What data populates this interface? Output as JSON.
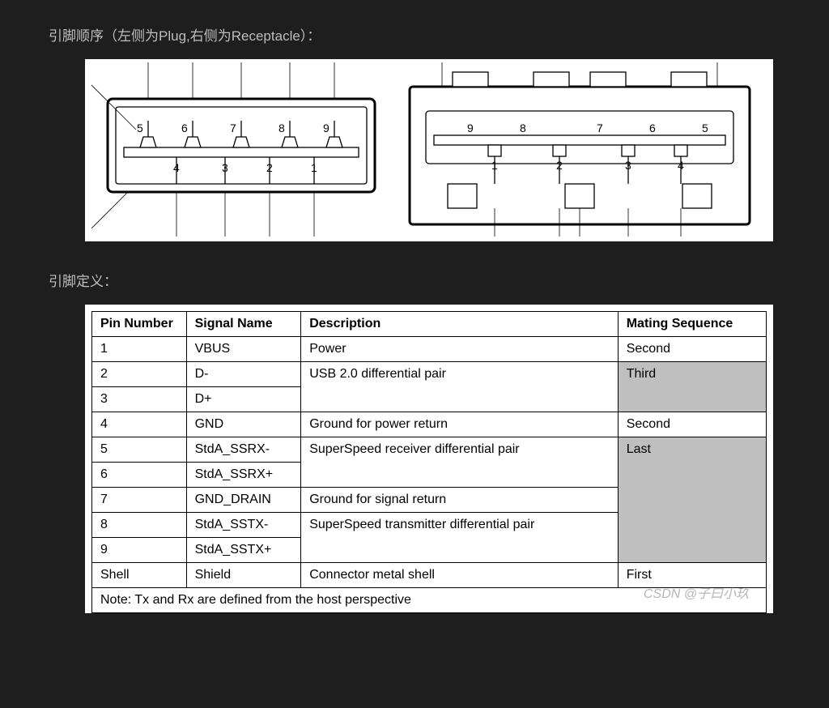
{
  "headings": {
    "pin_order": "引脚顺序（左侧为Plug,右侧为Receptacle）：",
    "pin_def": "引脚定义："
  },
  "diagrams": {
    "plug": {
      "type": "schematic",
      "stroke": "#000000",
      "stroke_width": 1.3,
      "fill": "#ffffff",
      "top_pins": [
        "5",
        "6",
        "7",
        "8",
        "9"
      ],
      "bottom_pins": [
        "4",
        "3",
        "2",
        "1"
      ],
      "label_fontsize": 14
    },
    "receptacle": {
      "type": "schematic",
      "stroke": "#000000",
      "stroke_width": 1.3,
      "fill": "#ffffff",
      "top_pins": [
        "9",
        "8",
        "7",
        "6",
        "5"
      ],
      "bottom_pins": [
        "1",
        "2",
        "3",
        "4"
      ],
      "label_fontsize": 14
    }
  },
  "table": {
    "type": "table",
    "border_color": "#000000",
    "background_color": "#ffffff",
    "shaded_color": "#bfbfbf",
    "header_fontweight": "bold",
    "fontsize": 16,
    "columns": [
      "Pin Number",
      "Signal Name",
      "Description",
      "Mating Sequence"
    ],
    "col_widths_pct": [
      14,
      17,
      47,
      22
    ],
    "rows": [
      {
        "pin": "1",
        "signal": "VBUS",
        "desc": "Power",
        "mate": "Second",
        "mate_span": 1,
        "desc_span": 1,
        "mate_shaded": false
      },
      {
        "pin": "2",
        "signal": "D-",
        "desc": "USB 2.0 differential pair",
        "mate": "Third",
        "mate_span": 2,
        "desc_span": 2,
        "mate_shaded": true
      },
      {
        "pin": "3",
        "signal": "D+"
      },
      {
        "pin": "4",
        "signal": "GND",
        "desc": "Ground for power return",
        "mate": "Second",
        "mate_span": 1,
        "desc_span": 1,
        "mate_shaded": false
      },
      {
        "pin": "5",
        "signal": "StdA_SSRX-",
        "desc": "SuperSpeed receiver differential pair",
        "mate": "Last",
        "mate_span": 5,
        "desc_span": 2,
        "mate_shaded": true
      },
      {
        "pin": "6",
        "signal": "StdA_SSRX+"
      },
      {
        "pin": "7",
        "signal": "GND_DRAIN",
        "desc": "Ground for signal return",
        "desc_span": 1
      },
      {
        "pin": "8",
        "signal": "StdA_SSTX-",
        "desc": "SuperSpeed transmitter differential pair",
        "desc_span": 2
      },
      {
        "pin": "9",
        "signal": "StdA_SSTX+"
      },
      {
        "pin": "Shell",
        "signal": "Shield",
        "desc": "Connector metal shell",
        "mate": "First",
        "mate_span": 1,
        "desc_span": 1,
        "mate_shaded": false
      }
    ],
    "note": "Note:  Tx and Rx are defined from the host perspective"
  },
  "watermark": "CSDN @子曰小玖"
}
